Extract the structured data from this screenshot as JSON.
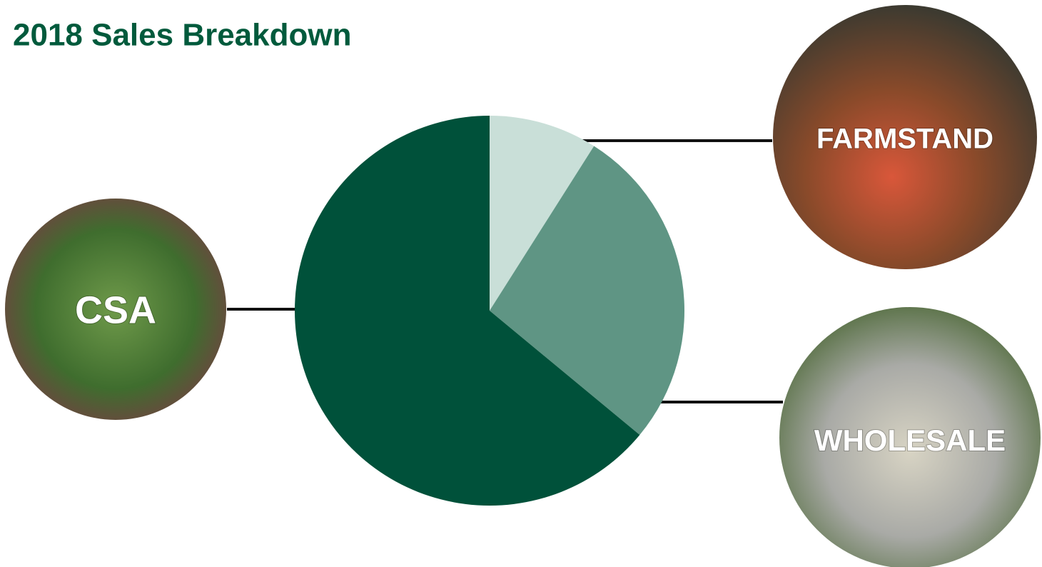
{
  "chart_data": {
    "type": "pie",
    "title": "2018 Sales Breakdown",
    "categories": [
      "FARMSTAND",
      "WHOLESALE",
      "CSA"
    ],
    "values": [
      9,
      27,
      64
    ],
    "colors": [
      "#c9dfd8",
      "#5f9584",
      "#00513a"
    ]
  }
}
